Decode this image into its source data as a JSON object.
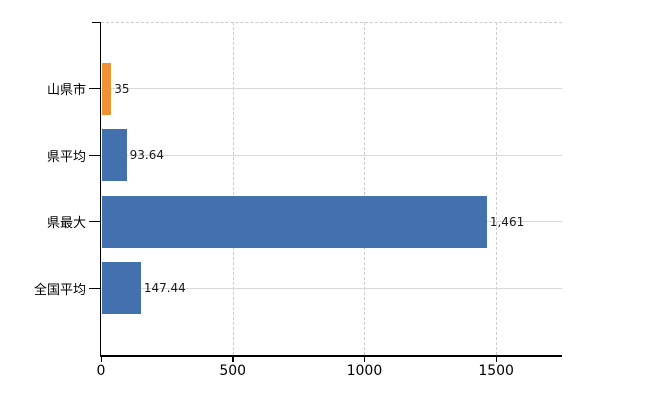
{
  "chart_data": {
    "type": "bar",
    "orientation": "horizontal",
    "title": "",
    "categories": [
      "山県市",
      "県平均",
      "県最大",
      "全国平均"
    ],
    "values": [
      35,
      93.64,
      1461,
      147.44
    ],
    "value_labels": [
      "35",
      "93.64",
      "1,461",
      "147.44"
    ],
    "bar_colors": [
      "#ED9333",
      "#4271AE",
      "#4271AE",
      "#4271AE"
    ],
    "x_axis": {
      "ticks": [
        0,
        500,
        1000,
        1500
      ],
      "tick_labels": [
        "0",
        "500",
        "1000",
        "1500"
      ],
      "min": 0,
      "max": 1750
    },
    "legend": "none",
    "grid": {
      "vertical": "dashed-gray",
      "horizontal": "solid-gray-at-category-rows"
    }
  },
  "colors": {
    "background": "#ffffff",
    "axis": "#000000",
    "grid_dashed": "#cccccc",
    "grid_solid": "#d9d9d9",
    "bar_blue": "#4271AE",
    "bar_orange": "#ED9333",
    "value_text": "#1a1a1a",
    "label_text": "#000000"
  }
}
